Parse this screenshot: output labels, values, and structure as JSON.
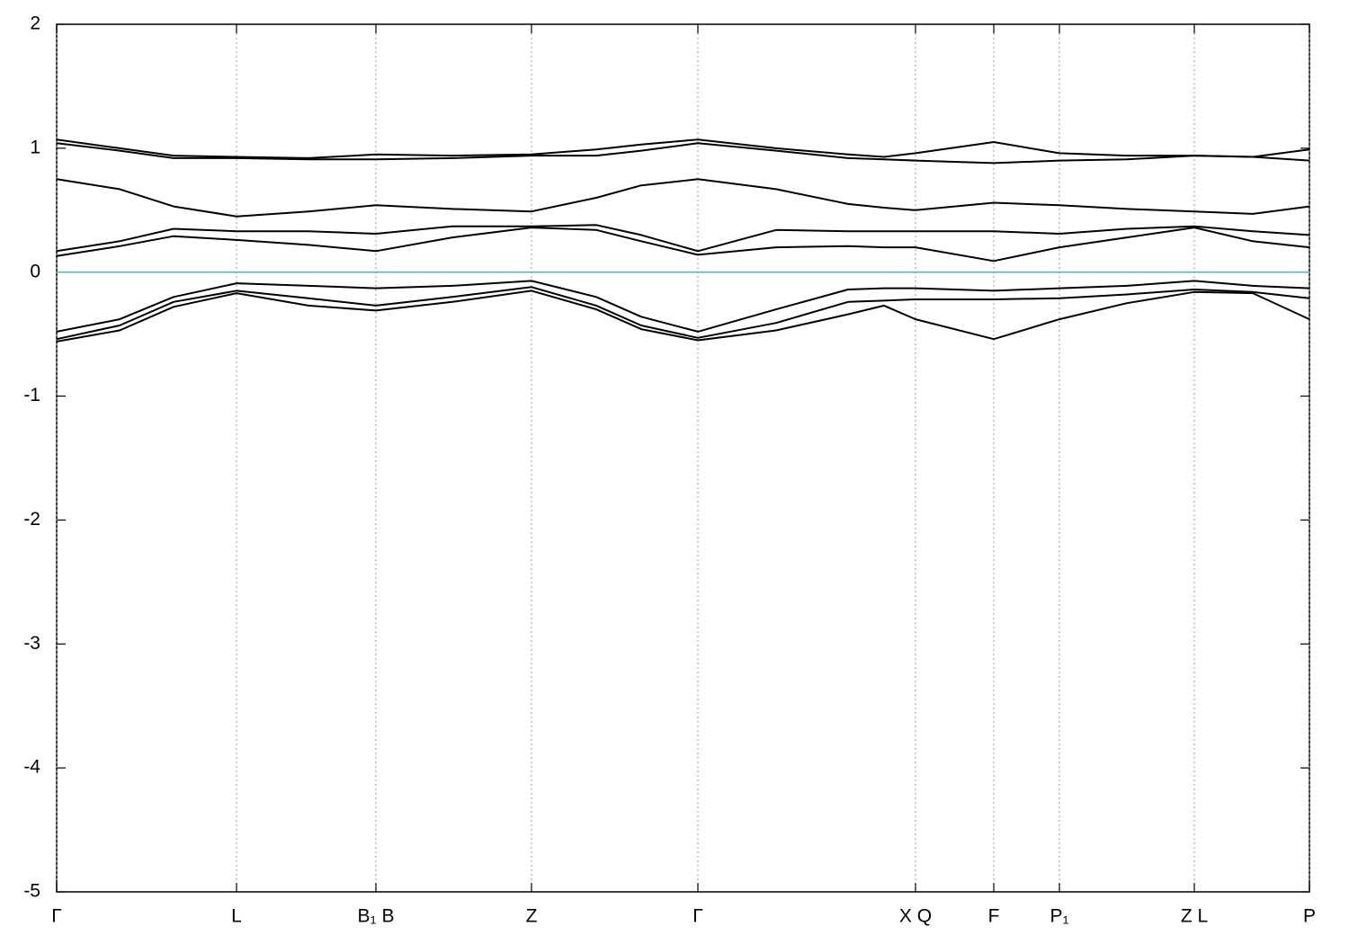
{
  "chart_data": {
    "type": "line",
    "x": [
      0,
      70,
      130,
      200,
      280,
      355,
      440,
      528,
      600,
      650,
      713,
      800,
      880,
      920,
      955,
      1042,
      1115,
      1190,
      1265,
      1330,
      1393
    ],
    "xlim": [
      0,
      1393
    ],
    "xticks": [
      {
        "value": 0,
        "label": "Γ"
      },
      {
        "value": 200,
        "label": "L"
      },
      {
        "value": 355,
        "label": "B₁ B"
      },
      {
        "value": 528,
        "label": "Z"
      },
      {
        "value": 713,
        "label": "Γ"
      },
      {
        "value": 955,
        "label": "X Q"
      },
      {
        "value": 1042,
        "label": "F"
      },
      {
        "value": 1115,
        "label": "P₁"
      },
      {
        "value": 1265,
        "label": "Z L"
      },
      {
        "value": 1393,
        "label": "P"
      }
    ],
    "ylim": [
      -5,
      2
    ],
    "yticks": [
      2,
      1,
      0,
      -1,
      -2,
      -3,
      -4,
      -5
    ],
    "grid": true,
    "fermi_level": 0,
    "fermi_color": "#5ab4c8",
    "series": [
      {
        "color": "#000000",
        "values": [
          1.07,
          1.0,
          0.94,
          0.93,
          0.92,
          0.95,
          0.94,
          0.95,
          0.99,
          1.03,
          1.07,
          1.0,
          0.95,
          0.93,
          0.96,
          1.05,
          0.96,
          0.94,
          0.94,
          0.93,
          0.99
        ]
      },
      {
        "color": "#000000",
        "values": [
          1.04,
          0.98,
          0.92,
          0.92,
          0.91,
          0.91,
          0.92,
          0.94,
          0.94,
          0.98,
          1.04,
          0.98,
          0.92,
          0.91,
          0.9,
          0.88,
          0.9,
          0.91,
          0.94,
          0.93,
          0.9
        ]
      },
      {
        "color": "#000000",
        "values": [
          0.75,
          0.67,
          0.53,
          0.45,
          0.49,
          0.54,
          0.51,
          0.49,
          0.6,
          0.7,
          0.75,
          0.67,
          0.55,
          0.52,
          0.5,
          0.56,
          0.54,
          0.51,
          0.49,
          0.47,
          0.53
        ]
      },
      {
        "color": "#000000",
        "values": [
          0.17,
          0.25,
          0.35,
          0.33,
          0.33,
          0.31,
          0.37,
          0.37,
          0.38,
          0.3,
          0.17,
          0.34,
          0.33,
          0.33,
          0.33,
          0.33,
          0.31,
          0.35,
          0.37,
          0.33,
          0.3
        ]
      },
      {
        "color": "#000000",
        "values": [
          0.13,
          0.21,
          0.29,
          0.26,
          0.22,
          0.17,
          0.28,
          0.36,
          0.34,
          0.25,
          0.14,
          0.2,
          0.21,
          0.2,
          0.2,
          0.09,
          0.2,
          0.28,
          0.36,
          0.25,
          0.2
        ]
      },
      {
        "color": "#000000",
        "values": [
          -0.48,
          -0.38,
          -0.2,
          -0.09,
          -0.11,
          -0.13,
          -0.11,
          -0.07,
          -0.2,
          -0.36,
          -0.48,
          -0.3,
          -0.14,
          -0.13,
          -0.13,
          -0.15,
          -0.13,
          -0.11,
          -0.07,
          -0.11,
          -0.13
        ]
      },
      {
        "color": "#000000",
        "values": [
          -0.54,
          -0.43,
          -0.24,
          -0.15,
          -0.21,
          -0.27,
          -0.2,
          -0.12,
          -0.27,
          -0.43,
          -0.53,
          -0.41,
          -0.24,
          -0.23,
          -0.22,
          -0.22,
          -0.21,
          -0.18,
          -0.14,
          -0.16,
          -0.21
        ]
      },
      {
        "color": "#000000",
        "values": [
          -0.56,
          -0.47,
          -0.28,
          -0.17,
          -0.27,
          -0.31,
          -0.24,
          -0.15,
          -0.3,
          -0.46,
          -0.55,
          -0.47,
          -0.34,
          -0.27,
          -0.38,
          -0.54,
          -0.38,
          -0.25,
          -0.16,
          -0.17,
          -0.38
        ]
      }
    ]
  }
}
